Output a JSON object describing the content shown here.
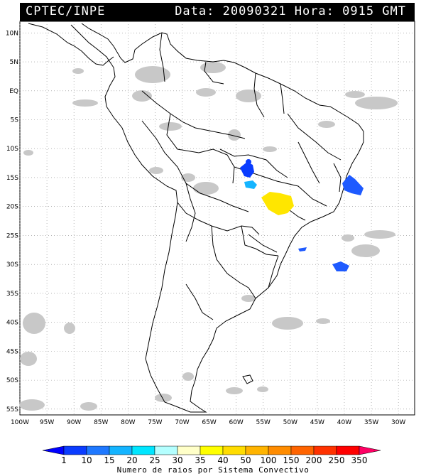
{
  "header": {
    "source": "CPTEC/INPE",
    "datetime": "Data: 20090321 Hora: 0915 GMT"
  },
  "map": {
    "lat_labels": [
      "10N",
      "5N",
      "EQ",
      "5S",
      "10S",
      "15S",
      "20S",
      "25S",
      "30S",
      "35S",
      "40S",
      "45S",
      "50S",
      "55S"
    ],
    "lon_labels": [
      "100W",
      "95W",
      "90W",
      "85W",
      "80W",
      "75W",
      "70W",
      "65W",
      "60W",
      "55W",
      "50W",
      "45W",
      "40W",
      "35W",
      "30W"
    ],
    "lat_range": [
      -56,
      12
    ],
    "lon_range": [
      -100,
      -27
    ],
    "grid": "dotted",
    "colors": {
      "cloud": "#c8c8c8",
      "coast": "#000000"
    }
  },
  "legend": {
    "labels": [
      "1",
      "10",
      "15",
      "20",
      "25",
      "30",
      "35",
      "40",
      "50",
      "100",
      "150",
      "200",
      "250",
      "350"
    ],
    "colors": [
      "#0000ff",
      "#0a3cff",
      "#1e78ff",
      "#14b4ff",
      "#00e6ff",
      "#b4ffff",
      "#ffffc8",
      "#ffff00",
      "#ffdc00",
      "#ffb400",
      "#ff8c00",
      "#ff6400",
      "#ff3200",
      "#ff0000",
      "#ff0064"
    ],
    "caption": "Numero de raios por Sistema Convectivo"
  }
}
